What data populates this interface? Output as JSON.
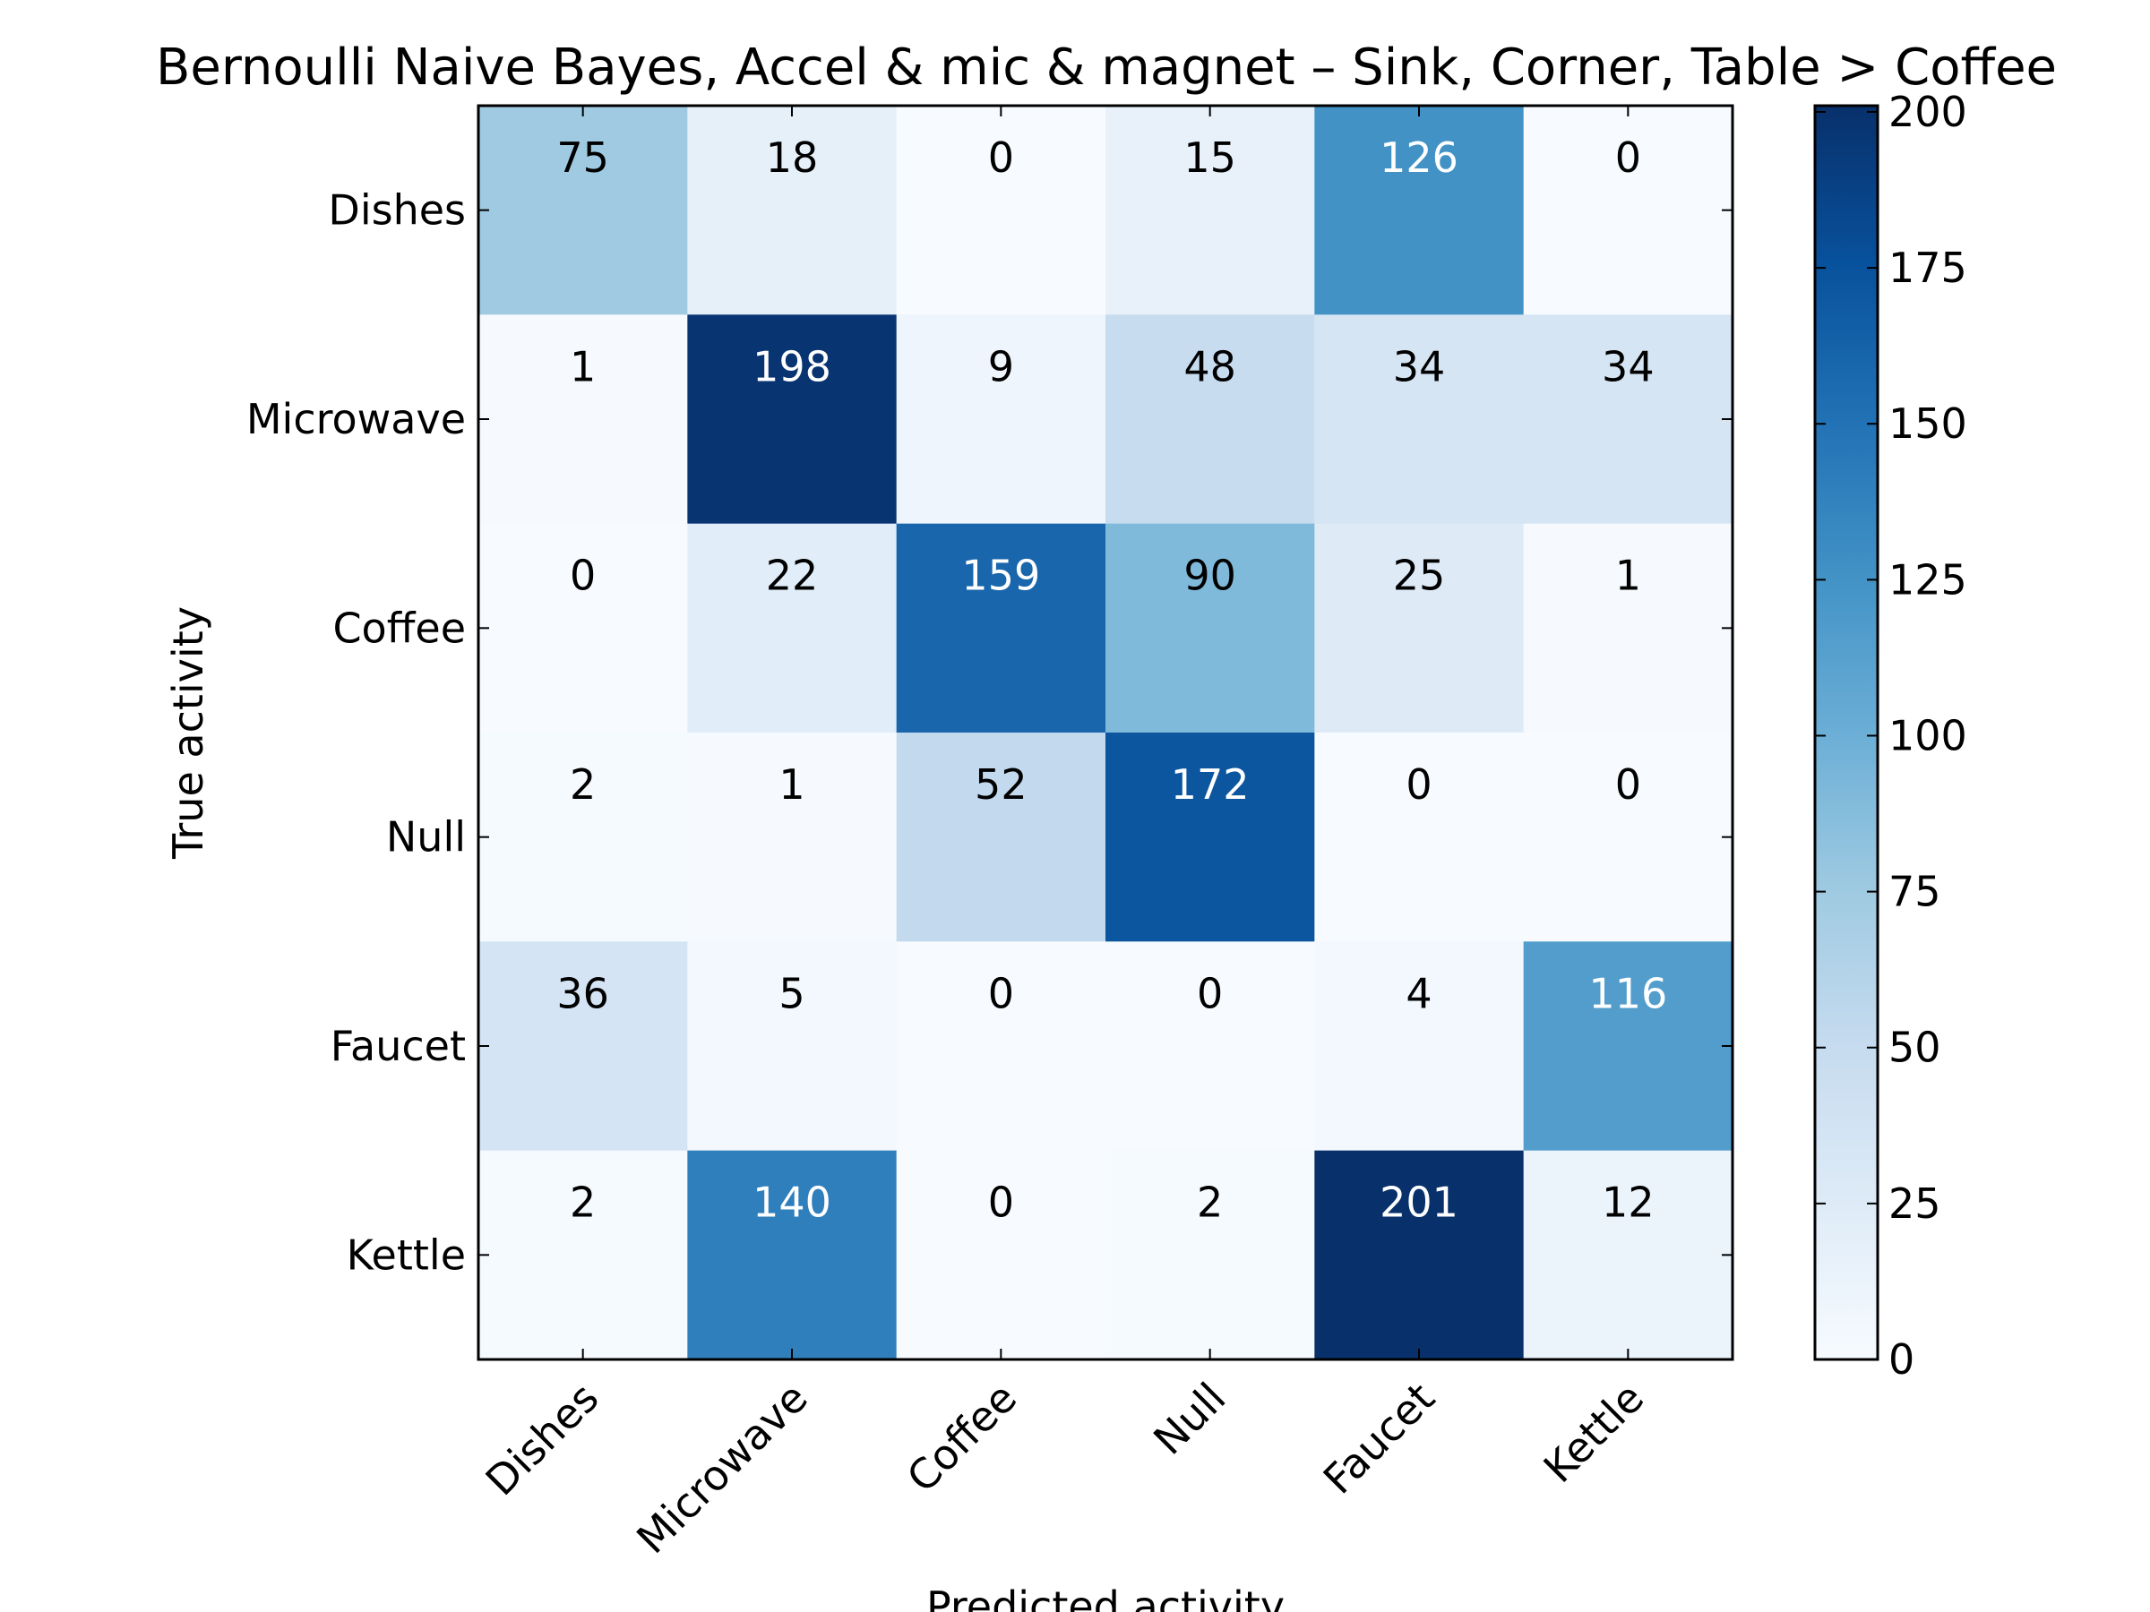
{
  "chart_data": {
    "type": "heatmap",
    "title": "Bernoulli Naive Bayes, Accel & mic & magnet – Sink, Corner, Table > Coffee",
    "xlabel": "Predicted activity",
    "ylabel": "True activity",
    "x_categories": [
      "Dishes",
      "Microwave",
      "Coffee",
      "Null",
      "Faucet",
      "Kettle"
    ],
    "y_categories": [
      "Dishes",
      "Microwave",
      "Coffee",
      "Null",
      "Faucet",
      "Kettle"
    ],
    "values": [
      [
        75,
        18,
        0,
        15,
        126,
        0
      ],
      [
        1,
        198,
        9,
        48,
        34,
        34
      ],
      [
        0,
        22,
        159,
        90,
        25,
        1
      ],
      [
        2,
        1,
        52,
        172,
        0,
        0
      ],
      [
        36,
        5,
        0,
        0,
        4,
        116
      ],
      [
        2,
        140,
        0,
        2,
        201,
        12
      ]
    ],
    "colorscale": "Blues",
    "colorbar": {
      "range": [
        0,
        201
      ],
      "ticks": [
        0,
        25,
        50,
        75,
        100,
        125,
        150,
        175,
        200
      ],
      "tick_labels": [
        "0",
        "25",
        "50",
        "75",
        "100",
        "125",
        "150",
        "175",
        "200"
      ]
    },
    "text_color_threshold": 100.5
  }
}
